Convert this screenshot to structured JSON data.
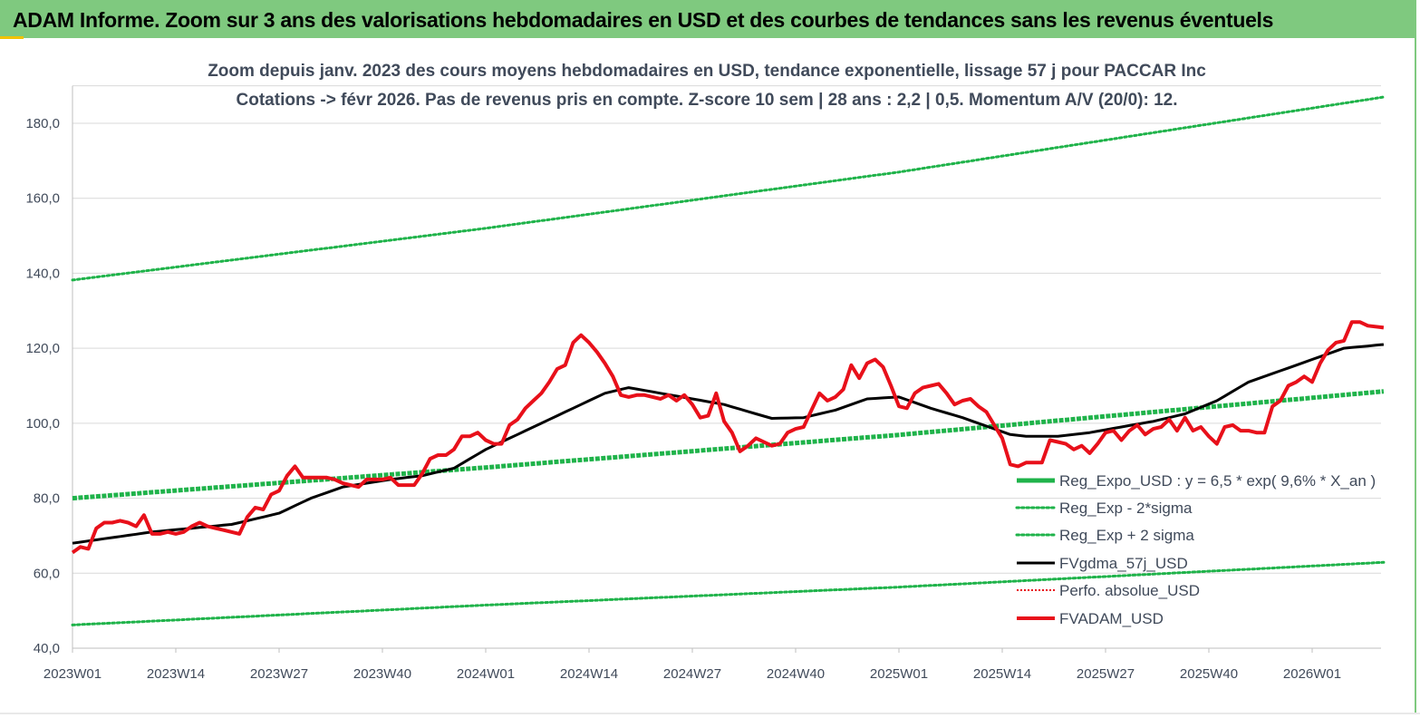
{
  "banner": {
    "title": "ADAM Informe. Zoom sur 3 ans des valorisations hebdomadaires en USD et des courbes de tendances sans les revenus éventuels"
  },
  "colors": {
    "banner": "#7fc97f",
    "trend": "#1fb34a",
    "sigma": "#1fb34a",
    "smooth": "#000000",
    "price": "#e8101a",
    "perfo": "#e8101a",
    "grid": "#d9d9d9",
    "text": "#404a5a"
  },
  "chart_data": {
    "type": "line",
    "subtitle_line1": "Zoom depuis janv. 2023 des cours moyens hebdomadaires en USD, tendance exponentielle, lissage 57 j pour PACCAR Inc",
    "subtitle_line2": "Cotations -> févr 2026.  Pas de revenus pris en compte. Z-score 10 sem  | 28 ans : 2,2  | 0,5. Momentum A/V (20/0): 12.",
    "ylim": [
      40,
      190
    ],
    "y_ticks": [
      "40,0",
      "60,0",
      "80,0",
      "100,0",
      "120,0",
      "140,0",
      "160,0",
      "180,0"
    ],
    "x_ticks": [
      "2023W01",
      "2023W14",
      "2023W27",
      "2023W40",
      "2024W01",
      "2024W14",
      "2024W27",
      "2024W40",
      "2025W01",
      "2025W14",
      "2025W27",
      "2025W40",
      "2026W01"
    ],
    "x_range_weeks": [
      0,
      165
    ],
    "grid": "horizontal",
    "legend_position": "right",
    "series": [
      {
        "name": "Reg_Expo_USD : y = 6,5 * exp( 9,6% *  X_an )",
        "style": "thick",
        "keypoints": [
          [
            0,
            80.0
          ],
          [
            52,
            88.2
          ],
          [
            104,
            96.9
          ],
          [
            165,
            108.5
          ]
        ]
      },
      {
        "name": "Reg_Exp - 2*sigma",
        "style": "dotted",
        "keypoints": [
          [
            0,
            46.2
          ],
          [
            52,
            51.5
          ],
          [
            104,
            56.3
          ],
          [
            165,
            62.9
          ]
        ]
      },
      {
        "name": "Reg_Exp + 2 sigma",
        "style": "dotted",
        "keypoints": [
          [
            0,
            138.2
          ],
          [
            52,
            152.0
          ],
          [
            104,
            167.0
          ],
          [
            165,
            187.0
          ]
        ]
      },
      {
        "name": "FVgdma_57j_USD",
        "style": "solid",
        "keypoints": [
          [
            0,
            68
          ],
          [
            10,
            71
          ],
          [
            20,
            73
          ],
          [
            26,
            76
          ],
          [
            30,
            80
          ],
          [
            34,
            83
          ],
          [
            40,
            85
          ],
          [
            44,
            86
          ],
          [
            48,
            88
          ],
          [
            52,
            93
          ],
          [
            56,
            97
          ],
          [
            60,
            101
          ],
          [
            64,
            105
          ],
          [
            67,
            108
          ],
          [
            70,
            109.5
          ],
          [
            74,
            108
          ],
          [
            78,
            106.5
          ],
          [
            82,
            105
          ],
          [
            86,
            102.5
          ],
          [
            88,
            101.3
          ],
          [
            92,
            101.5
          ],
          [
            96,
            103.5
          ],
          [
            100,
            106.5
          ],
          [
            104,
            107
          ],
          [
            106,
            105.5
          ],
          [
            108,
            104
          ],
          [
            112,
            101.5
          ],
          [
            116,
            98.5
          ],
          [
            118,
            97
          ],
          [
            120,
            96.5
          ],
          [
            124,
            96.5
          ],
          [
            128,
            97.5
          ],
          [
            132,
            99
          ],
          [
            136,
            100.5
          ],
          [
            140,
            102.5
          ],
          [
            144,
            106
          ],
          [
            148,
            111
          ],
          [
            152,
            114
          ],
          [
            156,
            117
          ],
          [
            160,
            120
          ],
          [
            165,
            121
          ]
        ]
      },
      {
        "name": "Perfo. absolue_USD",
        "style": "dotted-legend-only",
        "keypoints": []
      },
      {
        "name": "FVADAM_USD",
        "style": "thick",
        "keypoints": [
          [
            0,
            65.5
          ],
          [
            1,
            67
          ],
          [
            2,
            66.5
          ],
          [
            3,
            72
          ],
          [
            4,
            73.5
          ],
          [
            5,
            73.5
          ],
          [
            6,
            74
          ],
          [
            7,
            73.5
          ],
          [
            8,
            72.5
          ],
          [
            9,
            75.5
          ],
          [
            10,
            70.5
          ],
          [
            11,
            70.5
          ],
          [
            12,
            71
          ],
          [
            13,
            70.5
          ],
          [
            14,
            71
          ],
          [
            15,
            72.5
          ],
          [
            16,
            73.5
          ],
          [
            17,
            72.5
          ],
          [
            18,
            72
          ],
          [
            19,
            71.5
          ],
          [
            20,
            71
          ],
          [
            21,
            70.5
          ],
          [
            22,
            75
          ],
          [
            23,
            77.5
          ],
          [
            24,
            77
          ],
          [
            25,
            81
          ],
          [
            26,
            82
          ],
          [
            27,
            86
          ],
          [
            28,
            88.5
          ],
          [
            29,
            85.5
          ],
          [
            30,
            85.5
          ],
          [
            31,
            85.5
          ],
          [
            32,
            85.5
          ],
          [
            33,
            85
          ],
          [
            34,
            84
          ],
          [
            35,
            83.5
          ],
          [
            36,
            83
          ],
          [
            37,
            85
          ],
          [
            38,
            85
          ],
          [
            39,
            85
          ],
          [
            40,
            85.5
          ],
          [
            41,
            83.5
          ],
          [
            42,
            83.5
          ],
          [
            43,
            83.5
          ],
          [
            44,
            86.5
          ],
          [
            45,
            90.5
          ],
          [
            46,
            91.5
          ],
          [
            47,
            91.5
          ],
          [
            48,
            93
          ],
          [
            49,
            96.5
          ],
          [
            50,
            96.5
          ],
          [
            51,
            97.5
          ],
          [
            52,
            95.5
          ],
          [
            53,
            94.5
          ],
          [
            54,
            94.5
          ],
          [
            55,
            99.5
          ],
          [
            56,
            101
          ],
          [
            57,
            104
          ],
          [
            58,
            106
          ],
          [
            59,
            108
          ],
          [
            60,
            111
          ],
          [
            61,
            114.5
          ],
          [
            62,
            115.5
          ],
          [
            63,
            121.5
          ],
          [
            64,
            123.5
          ],
          [
            65,
            121.5
          ],
          [
            66,
            119
          ],
          [
            67,
            116
          ],
          [
            68,
            112.5
          ],
          [
            69,
            107.5
          ],
          [
            70,
            107
          ],
          [
            71,
            107.5
          ],
          [
            72,
            107.5
          ],
          [
            73,
            107
          ],
          [
            74,
            106.5
          ],
          [
            75,
            107.5
          ],
          [
            76,
            106
          ],
          [
            77,
            107.5
          ],
          [
            78,
            105
          ],
          [
            79,
            101.5
          ],
          [
            80,
            102
          ],
          [
            81,
            108
          ],
          [
            82,
            100.5
          ],
          [
            83,
            97.5
          ],
          [
            84,
            92.5
          ],
          [
            85,
            94
          ],
          [
            86,
            96
          ],
          [
            87,
            95
          ],
          [
            88,
            94
          ],
          [
            89,
            94.5
          ],
          [
            90,
            97.5
          ],
          [
            91,
            98.5
          ],
          [
            92,
            99
          ],
          [
            93,
            103.5
          ],
          [
            94,
            108
          ],
          [
            95,
            106
          ],
          [
            96,
            107
          ],
          [
            97,
            109
          ],
          [
            98,
            115.5
          ],
          [
            99,
            112
          ],
          [
            100,
            116
          ],
          [
            101,
            117
          ],
          [
            102,
            115
          ],
          [
            103,
            110
          ],
          [
            104,
            104.5
          ],
          [
            105,
            104
          ],
          [
            106,
            108
          ],
          [
            107,
            109.5
          ],
          [
            108,
            110
          ],
          [
            109,
            110.5
          ],
          [
            110,
            108
          ],
          [
            111,
            105
          ],
          [
            112,
            106
          ],
          [
            113,
            106.5
          ],
          [
            114,
            104.5
          ],
          [
            115,
            103
          ],
          [
            116,
            99.5
          ],
          [
            117,
            96
          ],
          [
            118,
            89
          ],
          [
            119,
            88.5
          ],
          [
            120,
            89.5
          ],
          [
            121,
            89.5
          ],
          [
            122,
            89.5
          ],
          [
            123,
            95.5
          ],
          [
            124,
            95
          ],
          [
            125,
            94.5
          ],
          [
            126,
            93
          ],
          [
            127,
            94
          ],
          [
            128,
            92
          ],
          [
            129,
            94.5
          ],
          [
            130,
            97.5
          ],
          [
            131,
            98
          ],
          [
            132,
            95.5
          ],
          [
            133,
            98
          ],
          [
            134,
            99.5
          ],
          [
            135,
            97
          ],
          [
            136,
            98.5
          ],
          [
            137,
            99
          ],
          [
            138,
            101
          ],
          [
            139,
            98
          ],
          [
            140,
            101.5
          ],
          [
            141,
            98
          ],
          [
            142,
            99
          ],
          [
            143,
            96.5
          ],
          [
            144,
            94.5
          ],
          [
            145,
            99
          ],
          [
            146,
            99.5
          ],
          [
            147,
            98
          ],
          [
            148,
            98
          ],
          [
            149,
            97.5
          ],
          [
            150,
            97.5
          ],
          [
            151,
            104.5
          ],
          [
            152,
            106
          ],
          [
            153,
            110
          ],
          [
            154,
            111
          ],
          [
            155,
            112.5
          ],
          [
            156,
            111
          ],
          [
            157,
            116
          ],
          [
            158,
            119.5
          ],
          [
            159,
            121.5
          ],
          [
            160,
            122
          ],
          [
            161,
            127
          ],
          [
            162,
            127
          ],
          [
            163,
            126
          ],
          [
            165,
            125.5
          ]
        ]
      }
    ]
  }
}
